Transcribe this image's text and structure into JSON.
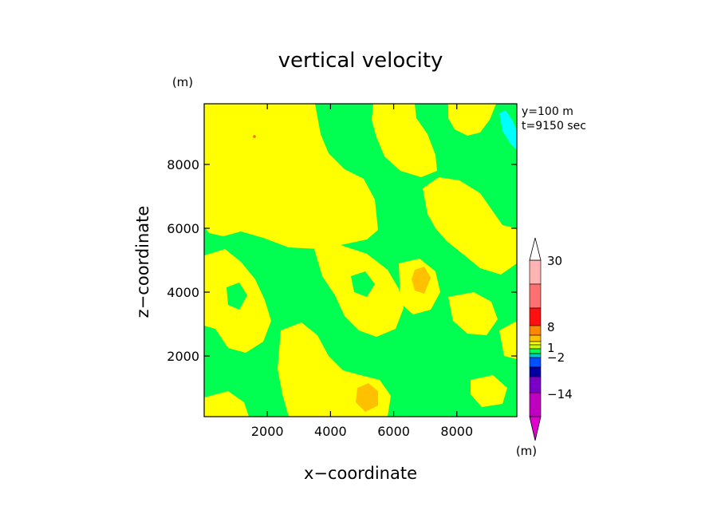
{
  "chart_data": {
    "type": "heatmap",
    "title": "vertical velocity",
    "xlabel": "x−coordinate",
    "ylabel": "z−coordinate",
    "x_unit": "(m)",
    "y_unit": "(m)",
    "info_lines": [
      "y=100 m",
      "t=9150 sec"
    ],
    "xlim": [
      0,
      9900
    ],
    "ylim": [
      100,
      9900
    ],
    "x_ticks": [
      2000,
      4000,
      6000,
      8000
    ],
    "x_tick_labels": [
      "2000",
      "4000",
      "6000",
      "8000"
    ],
    "y_ticks": [
      2000,
      4000,
      6000,
      8000
    ],
    "y_tick_labels": [
      "2000",
      "4000",
      "6000",
      "8000"
    ],
    "field_colors": {
      "background": "#00ff50",
      "yellow": "#ffff00",
      "orange": "#ffc000",
      "cyan": "#00ffff",
      "red_dot": "#ff6600"
    },
    "colorbar": {
      "unit": "(m)",
      "tick_labels": [
        "30",
        "8",
        "1",
        "−2",
        "−14"
      ],
      "bands": [
        {
          "color": "#ffb4b4"
        },
        {
          "color": "#ff7070"
        },
        {
          "color": "#ff1010"
        },
        {
          "color": "#ff8800"
        },
        {
          "color": "#ffc000"
        },
        {
          "color": "#ffff00"
        },
        {
          "color": "#c8ff00"
        },
        {
          "color": "#00ff50"
        },
        {
          "color": "#00c8c8"
        },
        {
          "color": "#0050ff"
        },
        {
          "color": "#0000a0"
        },
        {
          "color": "#7a00c8"
        },
        {
          "color": "#c000c0"
        }
      ],
      "top_arrow_color": "#ffffff",
      "bottom_arrow_color": "#e000d0"
    }
  }
}
